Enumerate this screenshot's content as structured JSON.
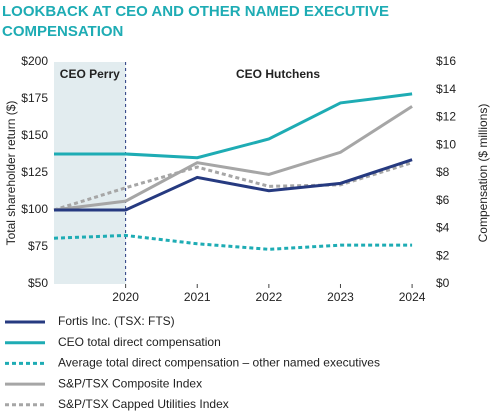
{
  "chart_data": {
    "type": "line",
    "title": "LOOKBACK AT CEO AND OTHER NAMED EXECUTIVE COMPENSATION",
    "ylabel": "Total shareholder return ($)",
    "y2label": "Compensation ($ millions)",
    "x": [
      2019,
      2020,
      2021,
      2022,
      2023,
      2024
    ],
    "xlim": [
      2019,
      2024.25
    ],
    "xticks": [
      2020,
      2021,
      2022,
      2023,
      2024
    ],
    "ylim": [
      50,
      200
    ],
    "yticks": [
      {
        "value": 50,
        "label": "$50"
      },
      {
        "value": 75,
        "label": "$75"
      },
      {
        "value": 100,
        "label": "$100"
      },
      {
        "value": 125,
        "label": "$125"
      },
      {
        "value": 150,
        "label": "$150"
      },
      {
        "value": 175,
        "label": "$175"
      },
      {
        "value": 200,
        "label": "$200"
      }
    ],
    "y2lim": [
      0,
      16
    ],
    "y2ticks": [
      {
        "value": 0,
        "label": "$0"
      },
      {
        "value": 2,
        "label": "$2"
      },
      {
        "value": 4,
        "label": "$4"
      },
      {
        "value": 6,
        "label": "$6"
      },
      {
        "value": 8,
        "label": "$8"
      },
      {
        "value": 10,
        "label": "$10"
      },
      {
        "value": 12,
        "label": "$12"
      },
      {
        "value": 14,
        "label": "$14"
      },
      {
        "value": 16,
        "label": "$16"
      }
    ],
    "shade": {
      "x": [
        2019,
        2020
      ],
      "color": "#e2ecef"
    },
    "annotations": [
      "CEO Perry",
      "CEO Hutchens"
    ],
    "series": [
      {
        "name": "Fortis Inc. (TSX: FTS)",
        "color": "#263a80",
        "dash": false,
        "values": [
          100,
          100,
          122,
          113,
          118,
          134
        ]
      },
      {
        "name": "CEO total direct compensation",
        "color": "#1eacb4",
        "dash": false,
        "axis": "y2",
        "values": [
          9.37,
          9.37,
          9.1,
          10.45,
          13.05,
          13.7
        ]
      },
      {
        "name": "Average total direct compensation – other named executives",
        "color": "#1eacb4",
        "dash": true,
        "axis": "y2",
        "values": [
          3.3,
          3.5,
          2.9,
          2.5,
          2.8,
          2.8
        ]
      },
      {
        "name": "S&P/TSX Composite Index",
        "color": "#a6a6a6",
        "dash": false,
        "values": [
          100,
          106,
          132,
          124,
          139,
          170
        ]
      },
      {
        "name": "S&P/TSX Capped Utilities Index",
        "color": "#a6a6a6",
        "dash": true,
        "values": [
          100,
          115,
          129,
          116,
          117,
          132
        ]
      }
    ]
  }
}
